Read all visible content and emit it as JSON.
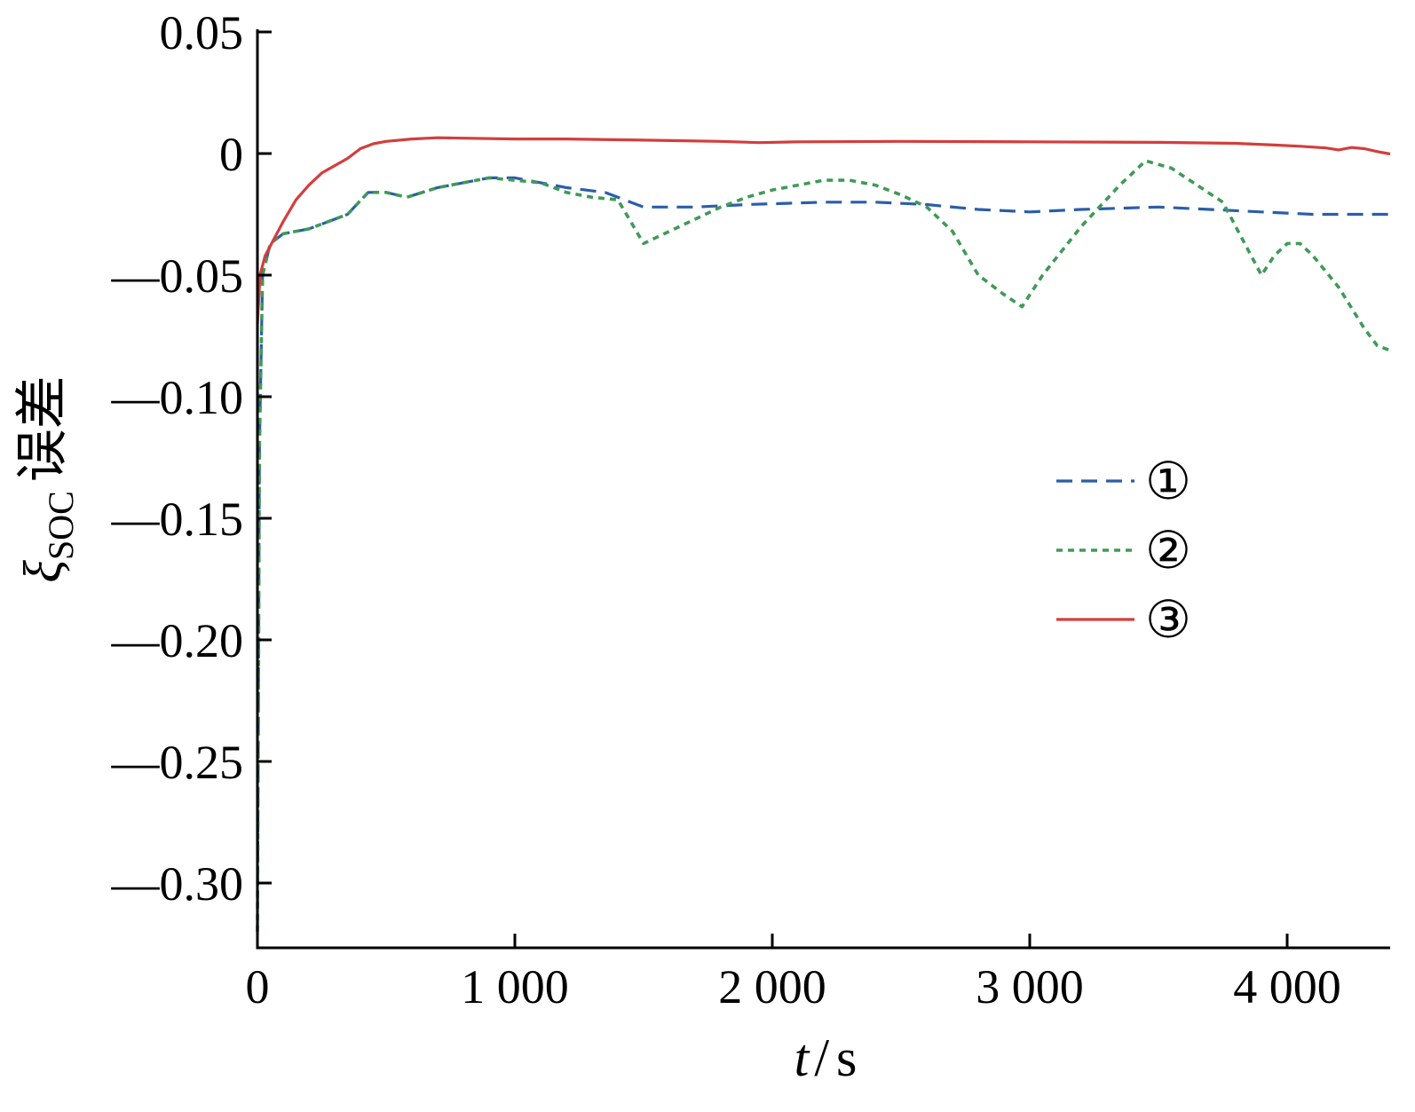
{
  "chart_data": {
    "type": "line",
    "title": "",
    "xlabel": "t/s",
    "xlabel_parts": {
      "var": "t",
      "sep": "/",
      "unit": "s"
    },
    "ylabel": "ξSOC误差",
    "ylabel_parts": {
      "symbol": "ξ",
      "sub": "SOC",
      "text": "误差"
    },
    "xlim": [
      0,
      4400
    ],
    "ylim": [
      -0.325,
      0.05
    ],
    "x_ticks": [
      {
        "value": 0,
        "label": "0"
      },
      {
        "value": 1000,
        "label": "1 000"
      },
      {
        "value": 2000,
        "label": "2 000"
      },
      {
        "value": 3000,
        "label": "3 000"
      },
      {
        "value": 4000,
        "label": "4 000"
      }
    ],
    "y_ticks": [
      {
        "value": 0.05,
        "label": "0.05"
      },
      {
        "value": 0,
        "label": "0"
      },
      {
        "value": -0.05,
        "label": "—0.05"
      },
      {
        "value": -0.1,
        "label": "—0.10"
      },
      {
        "value": -0.15,
        "label": "—0.15"
      },
      {
        "value": -0.2,
        "label": "—0.20"
      },
      {
        "value": -0.25,
        "label": "—0.25"
      },
      {
        "value": -0.3,
        "label": "—0.30"
      }
    ],
    "grid": false,
    "legend_position": "right-middle",
    "series": [
      {
        "name": "①",
        "color": "#2a5ea8",
        "style": "dashed",
        "points": [
          [
            0,
            -0.32
          ],
          [
            8,
            -0.12
          ],
          [
            20,
            -0.05
          ],
          [
            50,
            -0.037
          ],
          [
            100,
            -0.033
          ],
          [
            200,
            -0.031
          ],
          [
            350,
            -0.025
          ],
          [
            430,
            -0.016
          ],
          [
            500,
            -0.016
          ],
          [
            580,
            -0.018
          ],
          [
            700,
            -0.014
          ],
          [
            800,
            -0.012
          ],
          [
            900,
            -0.01
          ],
          [
            1000,
            -0.01
          ],
          [
            1100,
            -0.012
          ],
          [
            1200,
            -0.014
          ],
          [
            1350,
            -0.016
          ],
          [
            1500,
            -0.022
          ],
          [
            1700,
            -0.022
          ],
          [
            1900,
            -0.021
          ],
          [
            2200,
            -0.02
          ],
          [
            2400,
            -0.02
          ],
          [
            2600,
            -0.021
          ],
          [
            2800,
            -0.023
          ],
          [
            3000,
            -0.024
          ],
          [
            3200,
            -0.023
          ],
          [
            3500,
            -0.022
          ],
          [
            3700,
            -0.023
          ],
          [
            3900,
            -0.024
          ],
          [
            4100,
            -0.025
          ],
          [
            4300,
            -0.025
          ],
          [
            4400,
            -0.025
          ]
        ]
      },
      {
        "name": "②",
        "color": "#3f9a57",
        "style": "dotted",
        "points": [
          [
            0,
            -0.32
          ],
          [
            8,
            -0.12
          ],
          [
            20,
            -0.05
          ],
          [
            50,
            -0.037
          ],
          [
            100,
            -0.033
          ],
          [
            200,
            -0.031
          ],
          [
            350,
            -0.025
          ],
          [
            430,
            -0.016
          ],
          [
            500,
            -0.016
          ],
          [
            580,
            -0.018
          ],
          [
            700,
            -0.014
          ],
          [
            800,
            -0.012
          ],
          [
            900,
            -0.01
          ],
          [
            1000,
            -0.011
          ],
          [
            1100,
            -0.012
          ],
          [
            1200,
            -0.016
          ],
          [
            1300,
            -0.018
          ],
          [
            1400,
            -0.019
          ],
          [
            1450,
            -0.028
          ],
          [
            1500,
            -0.037
          ],
          [
            1600,
            -0.032
          ],
          [
            1700,
            -0.027
          ],
          [
            1800,
            -0.022
          ],
          [
            1900,
            -0.018
          ],
          [
            2000,
            -0.015
          ],
          [
            2100,
            -0.013
          ],
          [
            2200,
            -0.011
          ],
          [
            2300,
            -0.011
          ],
          [
            2400,
            -0.013
          ],
          [
            2500,
            -0.017
          ],
          [
            2600,
            -0.022
          ],
          [
            2700,
            -0.032
          ],
          [
            2800,
            -0.05
          ],
          [
            2900,
            -0.058
          ],
          [
            2970,
            -0.063
          ],
          [
            3050,
            -0.05
          ],
          [
            3200,
            -0.03
          ],
          [
            3350,
            -0.013
          ],
          [
            3450,
            -0.003
          ],
          [
            3550,
            -0.006
          ],
          [
            3650,
            -0.013
          ],
          [
            3750,
            -0.02
          ],
          [
            3800,
            -0.03
          ],
          [
            3850,
            -0.04
          ],
          [
            3900,
            -0.05
          ],
          [
            3950,
            -0.042
          ],
          [
            4000,
            -0.037
          ],
          [
            4050,
            -0.037
          ],
          [
            4100,
            -0.042
          ],
          [
            4200,
            -0.055
          ],
          [
            4300,
            -0.072
          ],
          [
            4350,
            -0.079
          ],
          [
            4400,
            -0.081
          ]
        ]
      },
      {
        "name": "③",
        "color": "#d43d3d",
        "style": "solid",
        "points": [
          [
            0,
            -0.07
          ],
          [
            10,
            -0.05
          ],
          [
            30,
            -0.042
          ],
          [
            60,
            -0.036
          ],
          [
            100,
            -0.028
          ],
          [
            150,
            -0.019
          ],
          [
            200,
            -0.013
          ],
          [
            250,
            -0.008
          ],
          [
            300,
            -0.005
          ],
          [
            350,
            -0.002
          ],
          [
            400,
            0.002
          ],
          [
            450,
            0.004
          ],
          [
            500,
            0.005
          ],
          [
            600,
            0.006
          ],
          [
            700,
            0.0065
          ],
          [
            800,
            0.0063
          ],
          [
            1000,
            0.006
          ],
          [
            1200,
            0.006
          ],
          [
            1500,
            0.0055
          ],
          [
            1800,
            0.005
          ],
          [
            1950,
            0.0045
          ],
          [
            2100,
            0.0048
          ],
          [
            2500,
            0.005
          ],
          [
            3000,
            0.0048
          ],
          [
            3500,
            0.0046
          ],
          [
            3800,
            0.0042
          ],
          [
            3950,
            0.0035
          ],
          [
            4050,
            0.003
          ],
          [
            4150,
            0.0023
          ],
          [
            4200,
            0.0015
          ],
          [
            4250,
            0.0025
          ],
          [
            4300,
            0.002
          ],
          [
            4350,
            0.0008
          ],
          [
            4400,
            -0.0002
          ]
        ]
      }
    ]
  }
}
